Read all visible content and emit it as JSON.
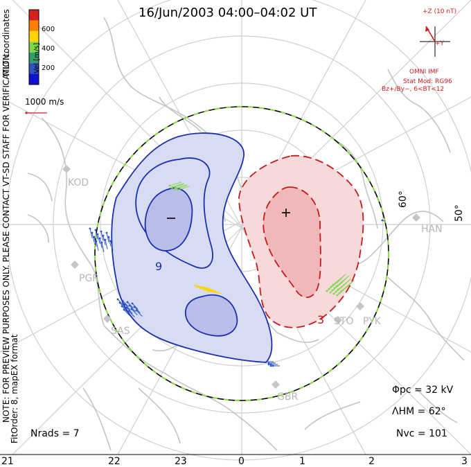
{
  "title": "16/Jun/2003 04:00–04:02 UT",
  "notes": {
    "preview": "NOTE: FOR PREVIEW PURPOSES ONLY. PLEASE CONTACT VT-SD STAFF FOR VERIFICATION.",
    "fit": "FitOrder: 8, mapEX format",
    "coords": "MLT coordinates"
  },
  "legend": {
    "title": "Vel [m/s]",
    "ticks": [
      "600",
      "400",
      "200"
    ],
    "scale_label": "1000 m/s",
    "colors": [
      "#d32020",
      "#ff7f00",
      "#ffd400",
      "#7fd84a",
      "#2e9e6b",
      "#2b53c4",
      "#1010d0"
    ]
  },
  "imf": {
    "z_label": "+Z (10 nT)",
    "y_label": "+Y",
    "source": "OMNI IMF",
    "model": "Stat Mod: RG96",
    "condition": "Bz+/By−, 6<BT<12"
  },
  "mlt_ticks": [
    "21",
    "22",
    "23",
    "0",
    "1",
    "2",
    "3"
  ],
  "lat_labels": [
    "60°",
    "50°"
  ],
  "stats": {
    "phi": "Φpc = 32 kV",
    "lambda": "ΛHM = 62°",
    "nvc": "Nvc = 101",
    "nrads": "Nrads = 7"
  },
  "contour_labels": {
    "neg": "9",
    "pos": "3"
  },
  "sites": [
    "KOD",
    "PGR",
    "SAS",
    "GBR",
    "STO",
    "PYK",
    "HAN"
  ],
  "colors": {
    "neg_fill": "#d8dcf3",
    "neg_core": "#b8bdea",
    "neg_line": "#1a2fb0",
    "pos_fill": "#f7d9d9",
    "pos_core": "#f0b8b8",
    "pos_line": "#c8181b",
    "coast": "#c7c7c7",
    "grid": "#c8c8c8"
  }
}
